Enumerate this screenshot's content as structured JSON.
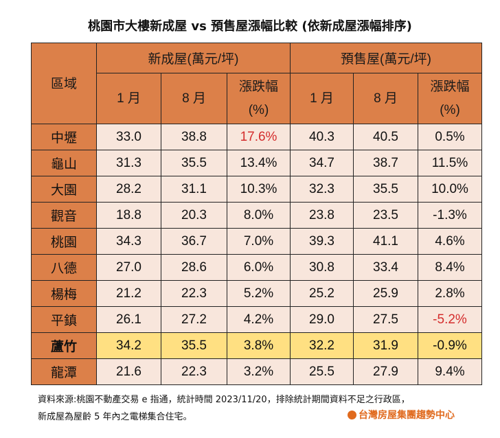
{
  "title": "桃園市大樓新成屋 vs 預售屋漲幅比較 (依新成屋漲幅排序)",
  "header": {
    "region": "區域",
    "new_group": "新成屋(萬元/坪)",
    "pre_group": "預售屋(萬元/坪)",
    "jan": "1 月",
    "aug": "8 月",
    "change_line1": "漲跌幅",
    "change_line2": "(%)"
  },
  "rows": [
    {
      "region": "中壢",
      "n1": "33.0",
      "n8": "38.8",
      "nc": "17.6%",
      "p1": "40.3",
      "p8": "40.5",
      "pc": "0.5%"
    },
    {
      "region": "龜山",
      "n1": "31.3",
      "n8": "35.5",
      "nc": "13.4%",
      "p1": "34.7",
      "p8": "38.7",
      "pc": "11.5%"
    },
    {
      "region": "大園",
      "n1": "28.2",
      "n8": "31.1",
      "nc": "10.3%",
      "p1": "32.3",
      "p8": "35.5",
      "pc": "10.0%"
    },
    {
      "region": "觀音",
      "n1": "18.8",
      "n8": "20.3",
      "nc": "8.0%",
      "p1": "23.8",
      "p8": "23.5",
      "pc": "-1.3%"
    },
    {
      "region": "桃園",
      "n1": "34.3",
      "n8": "36.7",
      "nc": "7.0%",
      "p1": "39.3",
      "p8": "41.1",
      "pc": "4.6%"
    },
    {
      "region": "八德",
      "n1": "27.0",
      "n8": "28.6",
      "nc": "6.0%",
      "p1": "30.8",
      "p8": "33.4",
      "pc": "8.4%"
    },
    {
      "region": "楊梅",
      "n1": "21.2",
      "n8": "22.3",
      "nc": "5.2%",
      "p1": "25.2",
      "p8": "25.9",
      "pc": "2.8%"
    },
    {
      "region": "平鎮",
      "n1": "26.1",
      "n8": "27.2",
      "nc": "4.2%",
      "p1": "29.0",
      "p8": "27.5",
      "pc": "-5.2%"
    },
    {
      "region": "蘆竹",
      "n1": "34.2",
      "n8": "35.5",
      "nc": "3.8%",
      "p1": "32.2",
      "p8": "31.9",
      "pc": "-0.9%"
    },
    {
      "region": "龍潭",
      "n1": "21.6",
      "n8": "22.3",
      "nc": "3.2%",
      "p1": "25.5",
      "p8": "27.9",
      "pc": "9.4%"
    }
  ],
  "highlight_region": "蘆竹",
  "red_cells": [
    "中壢.nc",
    "平鎮.pc"
  ],
  "colors": {
    "header": "#DC8049",
    "row": "#F8E6DC",
    "highlight": "#FFE082",
    "red": "#D42C2C"
  },
  "footnote": {
    "line1": "資料來源:桃園不動產交易 e 指通，統計時間 2023/11/20，排除統計期間資料不足之行政區，",
    "line2": "新成屋為屋齡 5 年內之電梯集合住宅。"
  },
  "logo": "台灣房屋集團趨勢中心"
}
